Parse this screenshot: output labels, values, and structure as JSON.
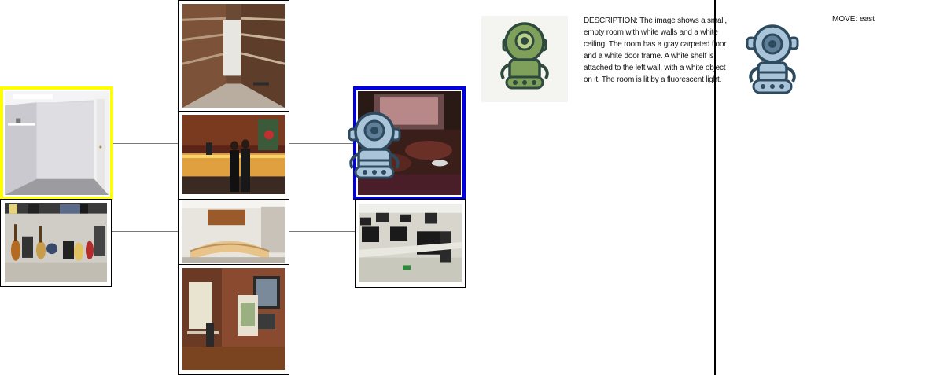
{
  "description": {
    "prefix": "DESCRIPTION: ",
    "text": "The image shows a small, empty room with white walls and a white ceiling. The room has a gray carpeted floor and a white door frame. A white shelf is attached to the left wall, with a white object on it. The room is lit by a fluorescent light."
  },
  "move": {
    "label": "MOVE: ",
    "direction": "east"
  },
  "map": {
    "rooms": [
      {
        "id": "closet",
        "scene": "empty white closet room",
        "highlight": "current"
      },
      {
        "id": "music-garage",
        "scene": "garage with guitars and drums"
      },
      {
        "id": "attic",
        "scene": "wooden attic"
      },
      {
        "id": "hotel-lobby",
        "scene": "hotel reception with people"
      },
      {
        "id": "reception-desk",
        "scene": "curved reception desk"
      },
      {
        "id": "art-studio",
        "scene": "art studio with easel"
      },
      {
        "id": "home-theater",
        "scene": "home theater",
        "highlight": "target",
        "agent": true
      },
      {
        "id": "computer-lab",
        "scene": "computer lab"
      }
    ],
    "highlight_colors": {
      "current": "#ffff00",
      "target": "#0000dd"
    }
  },
  "agents": {
    "guide_robot": "green-robot-icon",
    "player_robot": "blue-robot-icon"
  }
}
